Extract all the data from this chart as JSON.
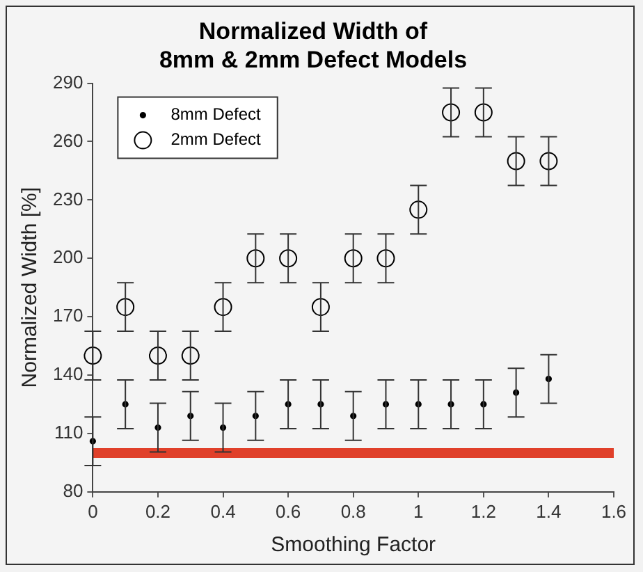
{
  "chart_data": {
    "type": "scatter",
    "title": "Normalized Width of\n8mm & 2mm Defect Models",
    "xlabel": "Smoothing Factor",
    "ylabel": "Normalized Width [%]",
    "x": [
      0,
      0.1,
      0.2,
      0.3,
      0.4,
      0.5,
      0.6,
      0.7,
      0.8,
      0.9,
      1,
      1.1,
      1.2,
      1.3,
      1.4
    ],
    "series": [
      {
        "name": "8mm Defect",
        "color": "#000000",
        "values": [
          106,
          125,
          113,
          119,
          113,
          119,
          125,
          125,
          119,
          125,
          125,
          125,
          125,
          131,
          138
        ],
        "errors": [
          12.5,
          12.5,
          12.5,
          12.5,
          12.5,
          12.5,
          12.5,
          12.5,
          12.5,
          12.5,
          12.5,
          12.5,
          12.5,
          12.5,
          12.5
        ]
      },
      {
        "name": "2mm Defect",
        "color": "#000000",
        "values": [
          150,
          175,
          150,
          150,
          175,
          200,
          200,
          175,
          200,
          200,
          225,
          275,
          275,
          250,
          250
        ],
        "errors": [
          12.5,
          12.5,
          12.5,
          12.5,
          12.5,
          12.5,
          12.5,
          12.5,
          12.5,
          12.5,
          12.5,
          12.5,
          12.5,
          12.5,
          12.5
        ]
      }
    ],
    "xlim": [
      0,
      1.6
    ],
    "xticks": [
      0,
      0.2,
      0.4,
      0.6,
      0.8,
      1,
      1.2,
      1.4,
      1.6
    ],
    "ylim": [
      80,
      290
    ],
    "yticks": [
      80,
      110,
      140,
      170,
      200,
      230,
      260,
      290
    ],
    "ref_lines": [
      {
        "axis": "y",
        "value": 100,
        "color": "#e0402a"
      }
    ],
    "grid": false,
    "legend": "top left",
    "marker": "circle"
  }
}
